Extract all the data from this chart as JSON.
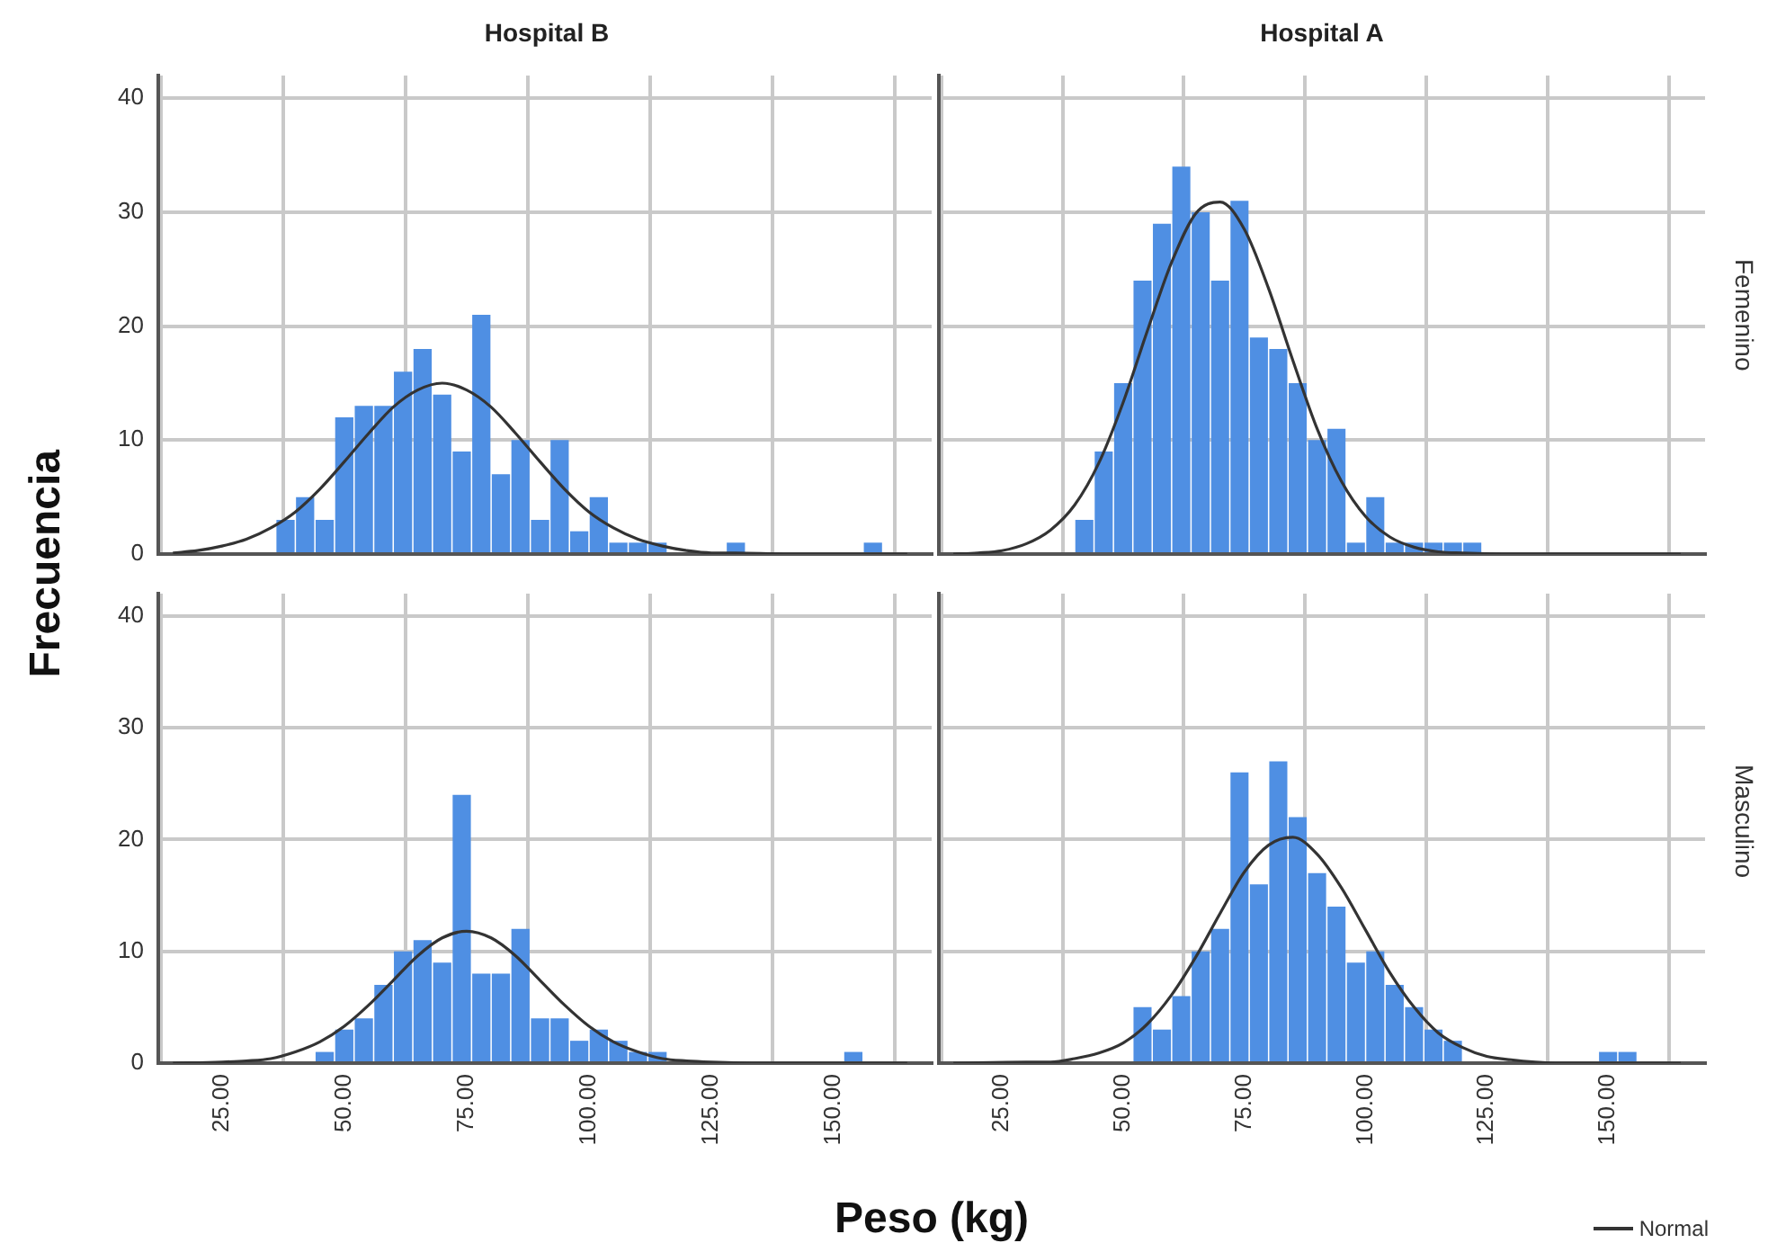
{
  "chart_data": [
    {
      "type": "histogram",
      "title": "Hospital B",
      "ylabel": "Frecuencia",
      "xlim": [
        12,
        170
      ],
      "ylim": [
        0,
        42
      ],
      "xticks": [
        {
          "value": 25,
          "label": null
        },
        {
          "value": 50,
          "label": null
        },
        {
          "value": 75,
          "label": null
        },
        {
          "value": 100,
          "label": null
        },
        {
          "value": 125,
          "label": null
        },
        {
          "value": 150,
          "label": null
        }
      ],
      "yticks": [
        0,
        10,
        20,
        30,
        40
      ],
      "grid": true,
      "tick_labels": "y",
      "series": [
        {
          "type": "histogram",
          "color": "#4f8fe3",
          "bins": [
            36,
            40,
            44,
            48,
            52,
            56,
            60,
            64,
            68,
            72,
            76,
            80,
            84,
            88,
            92,
            96,
            100,
            104,
            108,
            112,
            116,
            120,
            124,
            128,
            132,
            136,
            140,
            144,
            148,
            152,
            156,
            160
          ],
          "values": [
            3,
            5,
            3,
            12,
            13,
            13,
            16,
            18,
            14,
            9,
            21,
            7,
            10,
            3,
            10,
            2,
            5,
            1,
            1,
            1,
            0,
            0,
            0,
            1,
            0,
            0,
            0,
            0,
            0,
            0,
            1
          ]
        },
        {
          "type": "line",
          "color": "#333333",
          "x": [
            15,
            20,
            25,
            30,
            35,
            40,
            45,
            50,
            55,
            60,
            65,
            70,
            75,
            80,
            85,
            90,
            95,
            100,
            105,
            110,
            115,
            120,
            125,
            130,
            140,
            150,
            165
          ],
          "values": [
            0.1,
            0.3,
            0.7,
            1.3,
            2.3,
            3.7,
            5.7,
            8.1,
            10.6,
            12.9,
            14.4,
            15,
            14.4,
            12.9,
            10.6,
            8.1,
            5.7,
            3.7,
            2.3,
            1.3,
            0.7,
            0.3,
            0.1,
            0.1,
            0,
            0,
            0
          ]
        }
      ]
    },
    {
      "type": "histogram",
      "title": "Hospital A",
      "y2label": "Femenino",
      "xlim": [
        12,
        170
      ],
      "ylim": [
        0,
        42
      ],
      "xticks": [
        {
          "value": 25,
          "label": null
        },
        {
          "value": 50,
          "label": null
        },
        {
          "value": 75,
          "label": null
        },
        {
          "value": 100,
          "label": null
        },
        {
          "value": 125,
          "label": null
        },
        {
          "value": 150,
          "label": null
        }
      ],
      "yticks": [
        {
          "value": 0,
          "label": null
        },
        {
          "value": 10,
          "label": null
        },
        {
          "value": 20,
          "label": null
        },
        {
          "value": 30,
          "label": null
        },
        {
          "value": 40,
          "label": null
        }
      ],
      "grid": true,
      "tick_labels": false,
      "series": [
        {
          "type": "histogram",
          "color": "#4f8fe3",
          "bins": [
            40,
            44,
            48,
            52,
            56,
            60,
            64,
            68,
            72,
            76,
            80,
            84,
            88,
            92,
            96,
            100,
            104,
            108,
            112,
            116,
            120,
            124
          ],
          "values": [
            3,
            9,
            15,
            24,
            29,
            34,
            30,
            24,
            31,
            19,
            18,
            15,
            10,
            11,
            1,
            5,
            1,
            1,
            1,
            1,
            1
          ]
        },
        {
          "type": "line",
          "color": "#333333",
          "x": [
            15,
            20,
            25,
            30,
            35,
            40,
            45,
            50,
            55,
            60,
            65,
            70,
            75,
            80,
            85,
            90,
            95,
            100,
            105,
            110,
            115,
            120,
            130,
            150,
            165
          ],
          "values": [
            0,
            0.1,
            0.3,
            0.9,
            2.1,
            4.3,
            8,
            13.3,
            19.6,
            25.6,
            29.9,
            30.9,
            28.5,
            23.3,
            17,
            11,
            6.4,
            3.3,
            1.5,
            0.6,
            0.2,
            0.1,
            0,
            0,
            0
          ]
        }
      ]
    },
    {
      "type": "histogram",
      "xlabel": "Peso (kg)",
      "xlim": [
        12,
        170
      ],
      "ylim": [
        0,
        42
      ],
      "xticks": [
        {
          "value": 25,
          "label": "25.00"
        },
        {
          "value": 50,
          "label": "50.00"
        },
        {
          "value": 75,
          "label": "75.00"
        },
        {
          "value": 100,
          "label": "100.00"
        },
        {
          "value": 125,
          "label": "125.00"
        },
        {
          "value": 150,
          "label": "150.00"
        }
      ],
      "yticks": [
        0,
        10,
        20,
        30,
        40
      ],
      "grid": true,
      "series": [
        {
          "type": "histogram",
          "color": "#4f8fe3",
          "bins": [
            44,
            48,
            52,
            56,
            60,
            64,
            68,
            72,
            76,
            80,
            84,
            88,
            92,
            96,
            100,
            104,
            108,
            112,
            116,
            120,
            124,
            128,
            132,
            136,
            140,
            144,
            148,
            152,
            156
          ],
          "values": [
            1,
            3,
            4,
            7,
            10,
            11,
            9,
            24,
            8,
            8,
            12,
            4,
            4,
            2,
            3,
            2,
            1,
            1,
            0,
            0,
            0,
            0,
            0,
            0,
            0,
            0,
            0,
            1
          ]
        },
        {
          "type": "line",
          "color": "#333333",
          "x": [
            15,
            25,
            30,
            35,
            40,
            45,
            50,
            55,
            60,
            65,
            70,
            75,
            80,
            85,
            90,
            95,
            100,
            105,
            110,
            115,
            120,
            125,
            135,
            150,
            165
          ],
          "values": [
            0,
            0.1,
            0.2,
            0.4,
            1,
            1.9,
            3.3,
            5.2,
            7.4,
            9.6,
            11.2,
            11.8,
            11.2,
            9.6,
            7.4,
            5.2,
            3.3,
            1.9,
            1,
            0.4,
            0.2,
            0.1,
            0,
            0,
            0
          ]
        }
      ]
    },
    {
      "type": "histogram",
      "y2label": "Masculino",
      "legend": "bottom right",
      "xlim": [
        12,
        170
      ],
      "ylim": [
        0,
        42
      ],
      "xticks": [
        {
          "value": 25,
          "label": "25.00"
        },
        {
          "value": 50,
          "label": "50.00"
        },
        {
          "value": 75,
          "label": "75.00"
        },
        {
          "value": 100,
          "label": "100.00"
        },
        {
          "value": 125,
          "label": "125.00"
        },
        {
          "value": 150,
          "label": "150.00"
        }
      ],
      "yticks": [
        {
          "value": 0,
          "label": null
        },
        {
          "value": 10,
          "label": null
        },
        {
          "value": 20,
          "label": null
        },
        {
          "value": 30,
          "label": null
        },
        {
          "value": 40,
          "label": null
        }
      ],
      "grid": true,
      "tick_labels": "x",
      "series": [
        {
          "type": "histogram",
          "color": "#4f8fe3",
          "bins": [
            52,
            56,
            60,
            64,
            68,
            72,
            76,
            80,
            84,
            88,
            92,
            96,
            100,
            104,
            108,
            112,
            116,
            120,
            124,
            128,
            132,
            136,
            140,
            144,
            148,
            152,
            156
          ],
          "values": [
            5,
            3,
            6,
            10,
            12,
            26,
            16,
            27,
            22,
            17,
            14,
            9,
            10,
            7,
            5,
            3,
            2,
            0,
            0,
            0,
            0,
            0,
            0,
            0,
            1,
            1
          ]
        },
        {
          "type": "line",
          "name": "Normal",
          "color": "#333333",
          "x": [
            15,
            30,
            35,
            40,
            45,
            50,
            55,
            60,
            65,
            70,
            75,
            80,
            85,
            90,
            95,
            100,
            105,
            110,
            115,
            120,
            125,
            130,
            135,
            140,
            150,
            165
          ],
          "values": [
            0,
            0.1,
            0.1,
            0.4,
            0.9,
            1.8,
            3.5,
            6.1,
            9.5,
            13.4,
            17.1,
            19.5,
            20.2,
            18.7,
            15.7,
            11.9,
            8.1,
            5,
            2.7,
            1.4,
            0.6,
            0.3,
            0.1,
            0,
            0,
            0
          ]
        }
      ]
    }
  ]
}
